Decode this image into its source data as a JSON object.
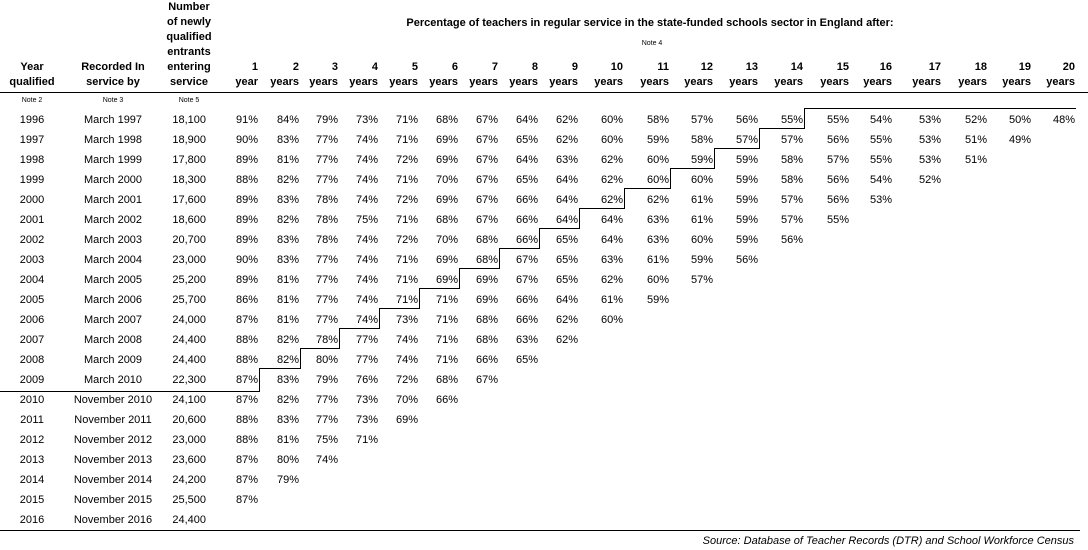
{
  "headers": {
    "year_lines": [
      "Year",
      "qualified"
    ],
    "recorded_lines": [
      "Recorded In",
      "service by"
    ],
    "number_lines": [
      "Number",
      "of newly",
      "qualified",
      "entrants",
      "entering",
      "service"
    ],
    "pct_title": "Percentage of teachers in regular service in the state-funded schools sector in England after:",
    "note_year": "Note 2",
    "note_recorded": "Note 3",
    "note_number": "Note 5",
    "note_pct": "Note 4",
    "periods": [
      {
        "n": "1",
        "u": "year"
      },
      {
        "n": "2",
        "u": "years"
      },
      {
        "n": "3",
        "u": "years"
      },
      {
        "n": "4",
        "u": "years"
      },
      {
        "n": "5",
        "u": "years"
      },
      {
        "n": "6",
        "u": "years"
      },
      {
        "n": "7",
        "u": "years"
      },
      {
        "n": "8",
        "u": "years"
      },
      {
        "n": "9",
        "u": "years"
      },
      {
        "n": "10",
        "u": "years"
      },
      {
        "n": "11",
        "u": "years"
      },
      {
        "n": "12",
        "u": "years"
      },
      {
        "n": "13",
        "u": "years"
      },
      {
        "n": "14",
        "u": "years"
      },
      {
        "n": "15",
        "u": "years"
      },
      {
        "n": "16",
        "u": "years"
      },
      {
        "n": "17",
        "u": "years"
      },
      {
        "n": "18",
        "u": "years"
      },
      {
        "n": "19",
        "u": "years"
      },
      {
        "n": "20",
        "u": "years"
      }
    ]
  },
  "rows": [
    {
      "year": "1996",
      "recorded": "March 1997",
      "number": "18,100",
      "values": [
        "91%",
        "84%",
        "79%",
        "73%",
        "71%",
        "68%",
        "67%",
        "64%",
        "62%",
        "60%",
        "58%",
        "57%",
        "56%",
        "55%",
        "55%",
        "54%",
        "53%",
        "52%",
        "50%",
        "48%"
      ]
    },
    {
      "year": "1997",
      "recorded": "March 1998",
      "number": "18,900",
      "values": [
        "90%",
        "83%",
        "77%",
        "74%",
        "71%",
        "69%",
        "67%",
        "65%",
        "62%",
        "60%",
        "59%",
        "58%",
        "57%",
        "57%",
        "56%",
        "55%",
        "53%",
        "51%",
        "49%"
      ]
    },
    {
      "year": "1998",
      "recorded": "March 1999",
      "number": "17,800",
      "values": [
        "89%",
        "81%",
        "77%",
        "74%",
        "72%",
        "69%",
        "67%",
        "64%",
        "63%",
        "62%",
        "60%",
        "59%",
        "59%",
        "58%",
        "57%",
        "55%",
        "53%",
        "51%"
      ]
    },
    {
      "year": "1999",
      "recorded": "March 2000",
      "number": "18,300",
      "values": [
        "88%",
        "82%",
        "77%",
        "74%",
        "71%",
        "70%",
        "67%",
        "65%",
        "64%",
        "62%",
        "60%",
        "60%",
        "59%",
        "58%",
        "56%",
        "54%",
        "52%"
      ]
    },
    {
      "year": "2000",
      "recorded": "March 2001",
      "number": "17,600",
      "values": [
        "89%",
        "83%",
        "78%",
        "74%",
        "72%",
        "69%",
        "67%",
        "66%",
        "64%",
        "62%",
        "62%",
        "61%",
        "59%",
        "57%",
        "56%",
        "53%"
      ]
    },
    {
      "year": "2001",
      "recorded": "March 2002",
      "number": "18,600",
      "values": [
        "89%",
        "82%",
        "78%",
        "75%",
        "71%",
        "68%",
        "67%",
        "66%",
        "64%",
        "64%",
        "63%",
        "61%",
        "59%",
        "57%",
        "55%"
      ]
    },
    {
      "year": "2002",
      "recorded": "March 2003",
      "number": "20,700",
      "values": [
        "89%",
        "83%",
        "78%",
        "74%",
        "72%",
        "70%",
        "68%",
        "66%",
        "65%",
        "64%",
        "63%",
        "60%",
        "59%",
        "56%"
      ]
    },
    {
      "year": "2003",
      "recorded": "March 2004",
      "number": "23,000",
      "values": [
        "90%",
        "83%",
        "77%",
        "74%",
        "71%",
        "69%",
        "68%",
        "67%",
        "65%",
        "63%",
        "61%",
        "59%",
        "56%"
      ]
    },
    {
      "year": "2004",
      "recorded": "March 2005",
      "number": "25,200",
      "values": [
        "89%",
        "81%",
        "77%",
        "74%",
        "71%",
        "69%",
        "69%",
        "67%",
        "65%",
        "62%",
        "60%",
        "57%"
      ]
    },
    {
      "year": "2005",
      "recorded": "March 2006",
      "number": "25,700",
      "values": [
        "86%",
        "81%",
        "77%",
        "74%",
        "71%",
        "71%",
        "69%",
        "66%",
        "64%",
        "61%",
        "59%"
      ]
    },
    {
      "year": "2006",
      "recorded": "March 2007",
      "number": "24,000",
      "values": [
        "87%",
        "81%",
        "77%",
        "74%",
        "73%",
        "71%",
        "68%",
        "66%",
        "62%",
        "60%"
      ]
    },
    {
      "year": "2007",
      "recorded": "March 2008",
      "number": "24,400",
      "values": [
        "88%",
        "82%",
        "78%",
        "77%",
        "74%",
        "71%",
        "68%",
        "63%",
        "62%"
      ]
    },
    {
      "year": "2008",
      "recorded": "March 2009",
      "number": "24,400",
      "values": [
        "88%",
        "82%",
        "80%",
        "77%",
        "74%",
        "71%",
        "66%",
        "65%"
      ]
    },
    {
      "year": "2009",
      "recorded": "March 2010",
      "number": "22,300",
      "values": [
        "87%",
        "83%",
        "79%",
        "76%",
        "72%",
        "68%",
        "67%"
      ]
    },
    {
      "year": "2010",
      "recorded": "November 2010",
      "number": "24,100",
      "values": [
        "87%",
        "82%",
        "77%",
        "73%",
        "70%",
        "66%"
      ]
    },
    {
      "year": "2011",
      "recorded": "November 2011",
      "number": "20,600",
      "values": [
        "88%",
        "83%",
        "77%",
        "73%",
        "69%"
      ]
    },
    {
      "year": "2012",
      "recorded": "November 2012",
      "number": "23,000",
      "values": [
        "88%",
        "81%",
        "75%",
        "71%"
      ]
    },
    {
      "year": "2013",
      "recorded": "November 2013",
      "number": "23,600",
      "values": [
        "87%",
        "80%",
        "74%"
      ]
    },
    {
      "year": "2014",
      "recorded": "November 2014",
      "number": "24,200",
      "values": [
        "87%",
        "79%"
      ]
    },
    {
      "year": "2015",
      "recorded": "November 2015",
      "number": "25,500",
      "values": [
        "87%"
      ]
    },
    {
      "year": "2016",
      "recorded": "November 2016",
      "number": "24,400",
      "values": []
    }
  ],
  "source": "Source: Database of Teacher Records (DTR) and School Workforce Census"
}
